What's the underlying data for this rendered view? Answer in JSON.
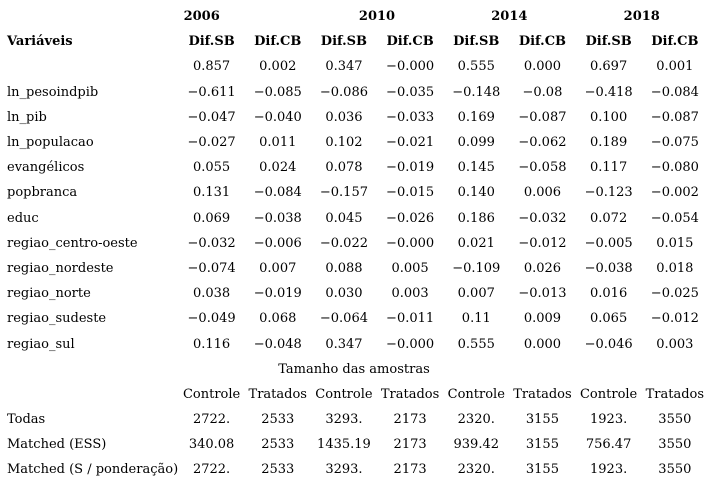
{
  "table": {
    "years": [
      "2006",
      "2010",
      "2014",
      "2018"
    ],
    "variables_label": "Variáveis",
    "diff_headers": [
      "Dif.SB",
      "Dif.CB",
      "Dif.SB",
      "Dif.CB",
      "Dif.SB",
      "Dif.CB",
      "Dif.SB",
      "Dif.CB"
    ],
    "rows": [
      {
        "label": "",
        "values": [
          "0.857",
          "0.002",
          "0.347",
          "−0.000",
          "0.555",
          "0.000",
          "0.697",
          "0.001"
        ]
      },
      {
        "label": "ln_pesoindpib",
        "values": [
          "−0.611",
          "−0.085",
          "−0.086",
          "−0.035",
          "−0.148",
          "−0.08",
          "−0.418",
          "−0.084"
        ]
      },
      {
        "label": "ln_pib",
        "values": [
          "−0.047",
          "−0.040",
          "0.036",
          "−0.033",
          "0.169",
          "−0.087",
          "0.100",
          "−0.087"
        ]
      },
      {
        "label": "ln_populacao",
        "values": [
          "−0.027",
          "0.011",
          "0.102",
          "−0.021",
          "0.099",
          "−0.062",
          "0.189",
          "−0.075"
        ]
      },
      {
        "label": "evangélicos",
        "values": [
          "0.055",
          "0.024",
          "0.078",
          "−0.019",
          "0.145",
          "−0.058",
          "0.117",
          "−0.080"
        ]
      },
      {
        "label": "popbranca",
        "values": [
          "0.131",
          "−0.084",
          "−0.157",
          "−0.015",
          "0.140",
          "0.006",
          "−0.123",
          "−0.002"
        ]
      },
      {
        "label": "educ",
        "values": [
          "0.069",
          "−0.038",
          "0.045",
          "−0.026",
          "0.186",
          "−0.032",
          "0.072",
          "−0.054"
        ]
      },
      {
        "label": "regiao_centro-oeste",
        "values": [
          "−0.032",
          "−0.006",
          "−0.022",
          "−0.000",
          "0.021",
          "−0.012",
          "−0.005",
          "0.015"
        ]
      },
      {
        "label": "regiao_nordeste",
        "values": [
          "−0.074",
          "0.007",
          "0.088",
          "0.005",
          "−0.109",
          "0.026",
          "−0.038",
          "0.018"
        ]
      },
      {
        "label": "regiao_norte",
        "values": [
          "0.038",
          "−0.019",
          "0.030",
          "0.003",
          "0.007",
          "−0.013",
          "0.016",
          "−0.025"
        ]
      },
      {
        "label": "regiao_sudeste",
        "values": [
          "−0.049",
          "0.068",
          "−0.064",
          "−0.011",
          "0.11",
          "0.009",
          "0.065",
          "−0.012"
        ]
      },
      {
        "label": "regiao_sul",
        "values": [
          "0.116",
          "−0.048",
          "0.347",
          "−0.000",
          "0.555",
          "0.000",
          "−0.046",
          "0.003"
        ]
      }
    ],
    "samples": {
      "title": "Tamanho das amostras",
      "col_headers": [
        "Controle",
        "Tratados",
        "Controle",
        "Tratados",
        "Controle",
        "Tratados",
        "Controle",
        "Tratados"
      ],
      "rows": [
        {
          "label": "Todas",
          "values": [
            "2722.",
            "2533",
            "3293.",
            "2173",
            "2320.",
            "3155",
            "1923.",
            "3550"
          ]
        },
        {
          "label": "Matched (ESS)",
          "values": [
            "340.08",
            "2533",
            "1435.19",
            "2173",
            "939.42",
            "3155",
            "756.47",
            "3550"
          ]
        },
        {
          "label": "Matched (S / ponderação)",
          "values": [
            "2722.",
            "2533",
            "3293.",
            "2173",
            "2320.",
            "3155",
            "1923.",
            "3550"
          ]
        }
      ]
    }
  }
}
